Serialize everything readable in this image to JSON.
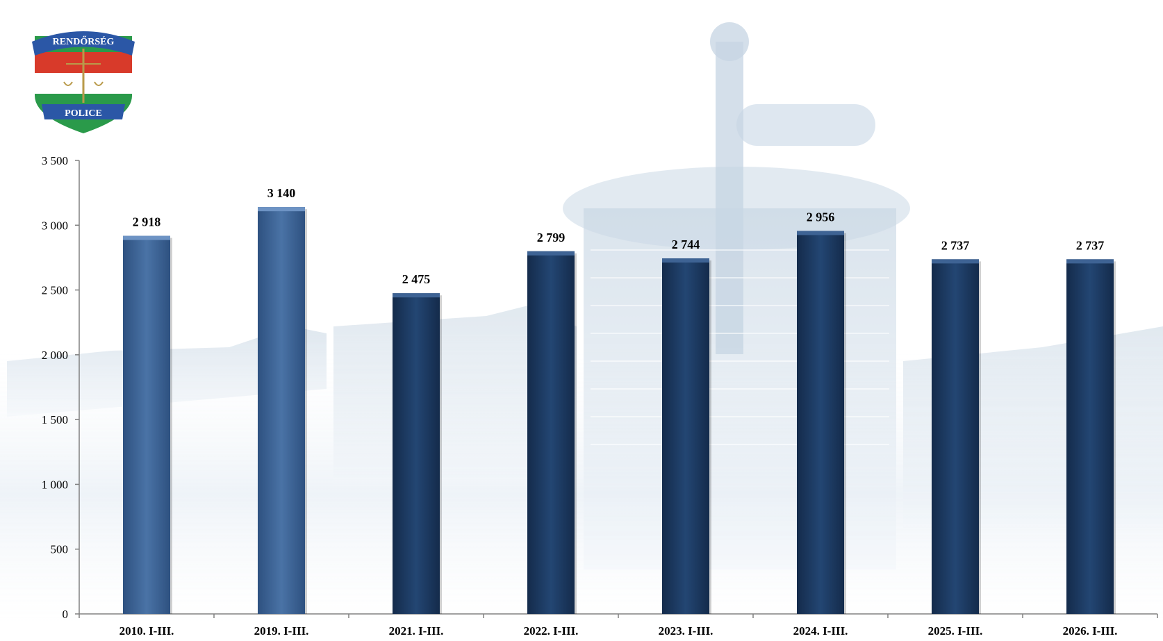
{
  "logo": {
    "top_text": "RENDŐRSÉG",
    "bottom_text": "POLICE"
  },
  "colors": {
    "bar_light": "#3d6494",
    "bar_dark": "#1d3a62",
    "axis": "#808080",
    "background_tint": "#dbe6f0"
  },
  "chart_data": {
    "type": "bar",
    "categories": [
      "2010. I-III.",
      "2019. I-III.",
      "2021. I-III.",
      "2022. I-III.",
      "2023. I-III.",
      "2024. I-III.",
      "2025. I-III.",
      "2026. I-III."
    ],
    "values": [
      2918,
      3140,
      2475,
      2799,
      2744,
      2956,
      2737,
      2737
    ],
    "value_labels": [
      "2 918",
      "3 140",
      "2 475",
      "2 799",
      "2 744",
      "2 956",
      "2 737",
      "2 737"
    ],
    "bar_styles": [
      "light",
      "light",
      "dark",
      "dark",
      "dark",
      "dark",
      "dark",
      "dark"
    ],
    "ylim": [
      0,
      3500
    ],
    "yticks": [
      0,
      500,
      1000,
      1500,
      2000,
      2500,
      3000,
      3500
    ],
    "ytick_labels": [
      "0",
      "500",
      "1 000",
      "1 500",
      "2 000",
      "2 500",
      "3 000",
      "3 500"
    ],
    "title": "",
    "xlabel": "",
    "ylabel": "",
    "grid": false,
    "legend": "none"
  }
}
